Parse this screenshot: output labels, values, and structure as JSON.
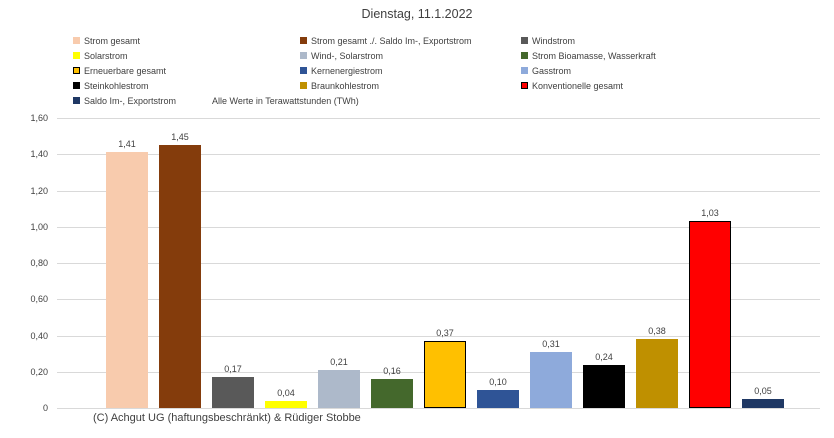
{
  "title": "Dienstag, 11.1.2022",
  "footer": "(C) Achgut UG (haftungsbeschränkt) & Rüdiger Stobbe",
  "colors": {
    "text": "#404040",
    "gridline": "#d9d9d9",
    "background": "#ffffff"
  },
  "chart_data": {
    "type": "bar",
    "title": "Dienstag, 11.1.2022",
    "unit_note": "Alle Werte in Terawattstunden (TWh)",
    "ylabel": "",
    "xlabel": "",
    "ylim": [
      0,
      1.6
    ],
    "ytick_step": 0.2,
    "ytick_labels": [
      "1,60",
      "1,40",
      "1,20",
      "1,00",
      "0,80",
      "0,60",
      "0,40",
      "0,20",
      "0"
    ],
    "grid": true,
    "legend_position": "top",
    "legend_columns": 3,
    "series": [
      {
        "name": "Strom gesamt",
        "value": 1.41,
        "label": "1,41",
        "color": "#F8CBAD",
        "border": null
      },
      {
        "name": "Strom gesamt ./. Saldo Im-, Exportstrom",
        "value": 1.45,
        "label": "1,45",
        "color": "#843C0C",
        "border": null
      },
      {
        "name": "Windstrom",
        "value": 0.17,
        "label": "0,17",
        "color": "#595959",
        "border": null
      },
      {
        "name": "Solarstrom",
        "value": 0.04,
        "label": "0,04",
        "color": "#FFFF00",
        "border": null
      },
      {
        "name": "Wind-, Solarstrom",
        "value": 0.21,
        "label": "0,21",
        "color": "#ADB9CA",
        "border": null
      },
      {
        "name": "Strom Bioamasse, Wasserkraft",
        "value": 0.16,
        "label": "0,16",
        "color": "#44682C",
        "border": null
      },
      {
        "name": "Erneuerbare gesamt",
        "value": 0.37,
        "label": "0,37",
        "color": "#FFC000",
        "border": "#000000"
      },
      {
        "name": "Kernenergiestrom",
        "value": 0.1,
        "label": "0,10",
        "color": "#2F5496",
        "border": null
      },
      {
        "name": "Gasstrom",
        "value": 0.31,
        "label": "0,31",
        "color": "#8EAADB",
        "border": null
      },
      {
        "name": "Steinkohlestrom",
        "value": 0.24,
        "label": "0,24",
        "color": "#000000",
        "border": null
      },
      {
        "name": "Braunkohlestrom",
        "value": 0.38,
        "label": "0,38",
        "color": "#BF9000",
        "border": null
      },
      {
        "name": "Konventionelle gesamt",
        "value": 1.03,
        "label": "1,03",
        "color": "#FF0000",
        "border": "#000000"
      },
      {
        "name": "Saldo Im-, Exportstrom",
        "value": 0.05,
        "label": "0,05",
        "color": "#1F3864",
        "border": null
      }
    ]
  }
}
